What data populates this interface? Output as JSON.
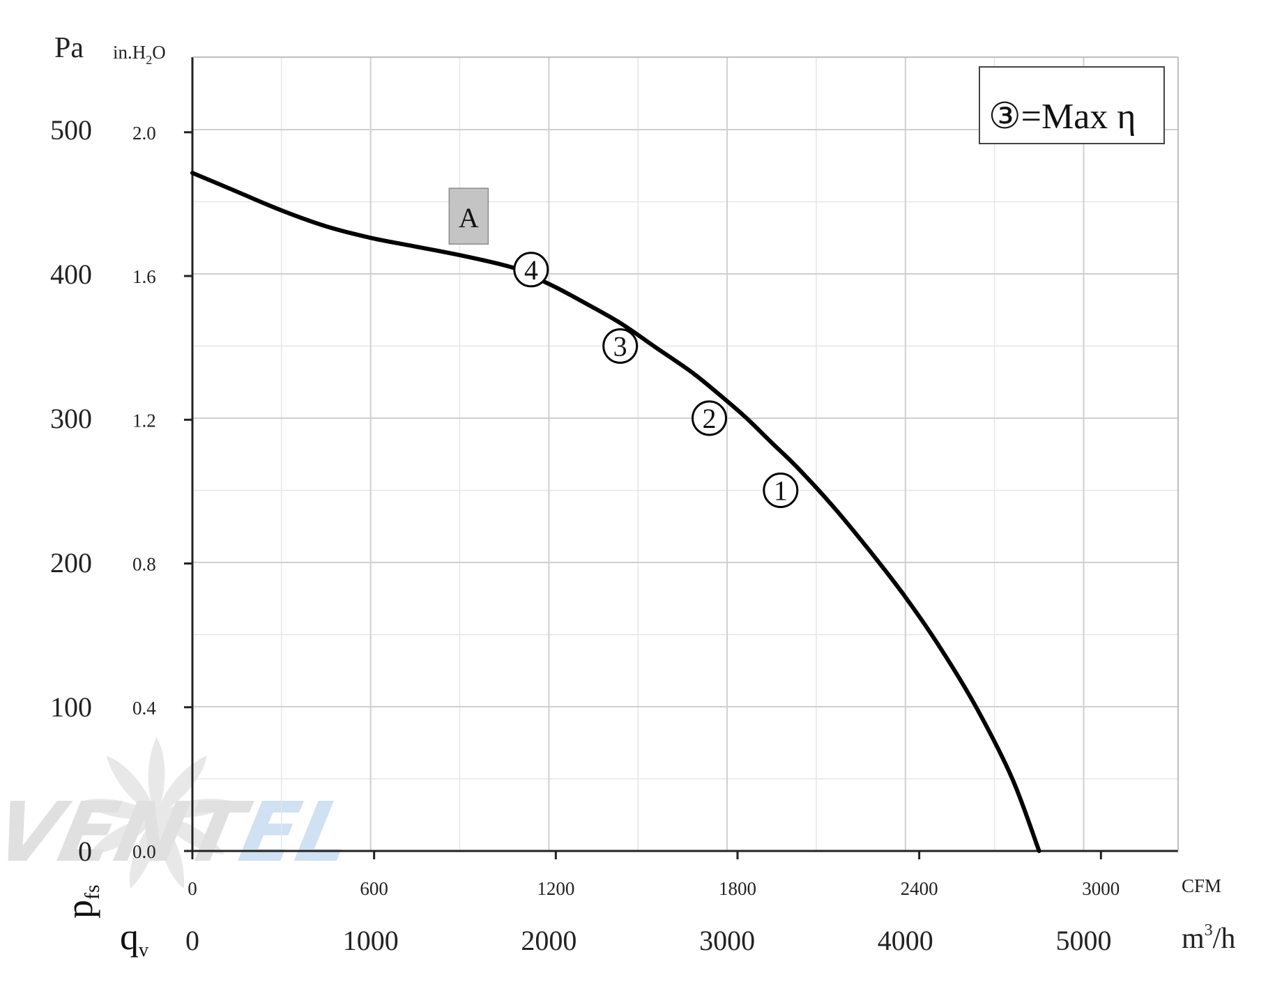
{
  "chart_data": {
    "type": "line",
    "xlim_m3h": [
      0,
      5500
    ],
    "ylim_pa": [
      0,
      500
    ],
    "grid": true,
    "x_primary": {
      "symbol": "q",
      "subscript": "v",
      "unit": "m³/h",
      "unit_base": "m",
      "unit_sup": "3",
      "unit_tail": "/h",
      "ticks": [
        0,
        1000,
        2000,
        3000,
        4000,
        5000
      ]
    },
    "x_secondary": {
      "unit": "CFM",
      "ticks": [
        0,
        600,
        1200,
        1800,
        2400,
        3000
      ],
      "factor_to_m3h": 1.699
    },
    "y_primary": {
      "symbol": "p",
      "subscript": "fs",
      "unit": "Pa",
      "ticks": [
        0,
        100,
        200,
        300,
        400,
        500
      ]
    },
    "y_secondary": {
      "unit": "in.H₂O",
      "unit_base": "in.H",
      "unit_sub": "2",
      "unit_tail": "O",
      "ticks": [
        "0.0",
        "0.4",
        "0.8",
        "1.2",
        "1.6",
        "2.0"
      ],
      "factor_to_pa": 249.09
    },
    "series": [
      {
        "label": "A",
        "x": [
          0,
          250,
          500,
          750,
          1000,
          1250,
          1500,
          1750,
          1850,
          1950,
          2050,
          2200,
          2400,
          2600,
          2800,
          2950,
          3100,
          3250,
          3400,
          3600,
          3800,
          4000,
          4200,
          4400,
          4600,
          4750
        ],
        "y": [
          470,
          457,
          444,
          433,
          425,
          419,
          413,
          406,
          402,
          396,
          390,
          380,
          366,
          349,
          332,
          317,
          301,
          283,
          265,
          238,
          208,
          176,
          140,
          99,
          50,
          0
        ]
      }
    ],
    "operating_points": [
      {
        "label": "4",
        "x": 1900,
        "y": 403
      },
      {
        "label": "3",
        "x": 2400,
        "y": 350
      },
      {
        "label": "2",
        "x": 2900,
        "y": 300
      },
      {
        "label": "1",
        "x": 3300,
        "y": 250
      }
    ],
    "legend": {
      "symbol": "③",
      "text": "=Max η",
      "position": "top-right"
    },
    "watermark": {
      "part1": "VENT",
      "part2": "EL"
    }
  }
}
